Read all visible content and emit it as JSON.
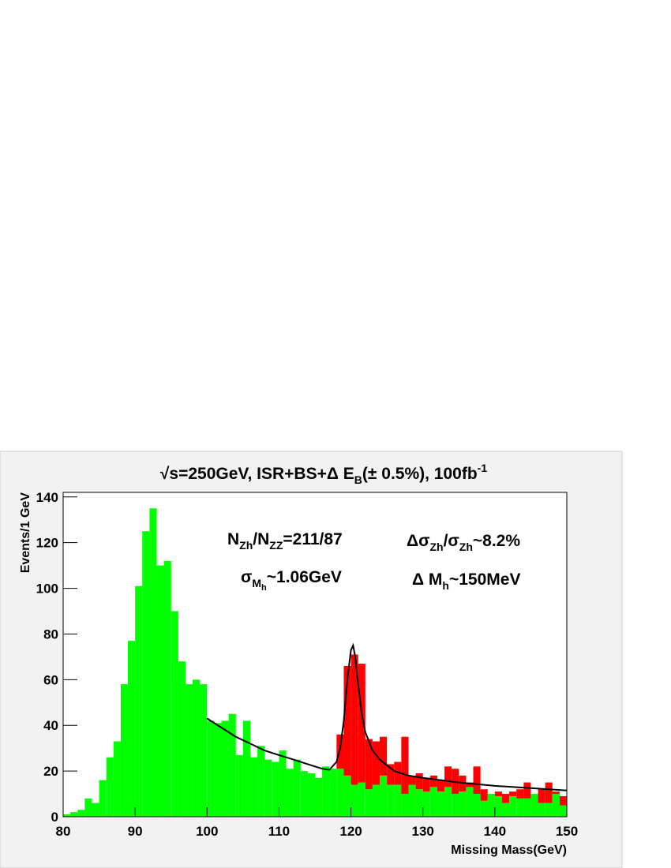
{
  "chart_data": {
    "type": "histogram",
    "title": [
      {
        "text": "√s=250GeV, ISR+BS+Δ E"
      },
      {
        "text": "B",
        "shift": "sub"
      },
      {
        "text": "(± 0.5%), 100fb"
      },
      {
        "text": "-1",
        "shift": "sup"
      }
    ],
    "x_label": "Missing Mass(GeV)",
    "y_label": "Events/1 GeV",
    "annotations": [
      [
        {
          "text": "N"
        },
        {
          "text": "Zh",
          "shift": "sub"
        },
        {
          "text": "/N"
        },
        {
          "text": "ZZ",
          "shift": "sub"
        },
        {
          "text": "=211/87"
        }
      ],
      [
        {
          "text": "Δσ"
        },
        {
          "text": "Zh",
          "shift": "sub"
        },
        {
          "text": "/σ"
        },
        {
          "text": "Zh",
          "shift": "sub"
        },
        {
          "text": "~8.2%"
        }
      ],
      [
        {
          "text": "σ"
        },
        {
          "text": "M",
          "shift": "sub"
        },
        {
          "text": "h",
          "shift": "subsub"
        },
        {
          "text": "~1.06GeV"
        }
      ],
      [
        {
          "text": "Δ M"
        },
        {
          "text": "h",
          "shift": "sub"
        },
        {
          "text": "~150MeV"
        }
      ]
    ],
    "bins": [
      80,
      81,
      82,
      83,
      84,
      85,
      86,
      87,
      88,
      89,
      90,
      91,
      92,
      93,
      94,
      95,
      96,
      97,
      98,
      99,
      100,
      101,
      102,
      103,
      104,
      105,
      106,
      107,
      108,
      109,
      110,
      111,
      112,
      113,
      114,
      115,
      116,
      117,
      118,
      119,
      120,
      121,
      122,
      123,
      124,
      125,
      126,
      127,
      128,
      129,
      130,
      131,
      132,
      133,
      134,
      135,
      136,
      137,
      138,
      139,
      140,
      141,
      142,
      143,
      144,
      145,
      146,
      147,
      148,
      149,
      150
    ],
    "series": [
      {
        "color": "#00ff00",
        "values": [
          1,
          2,
          3,
          8,
          6,
          16,
          26,
          33,
          58,
          77,
          101,
          125,
          135,
          110,
          112,
          90,
          68,
          58,
          60,
          58,
          42,
          41,
          42,
          45,
          27,
          42,
          26,
          31,
          25,
          24,
          29,
          21,
          25,
          20,
          19,
          17,
          22,
          21,
          21,
          18,
          14,
          15,
          12,
          14,
          18,
          14,
          14,
          10,
          14,
          12,
          11,
          13,
          11,
          13,
          10,
          11,
          13,
          10,
          7,
          10,
          9,
          6,
          9,
          8,
          8,
          10,
          6,
          6,
          10,
          5
        ]
      },
      {
        "color": "#ff0000",
        "values": [
          0,
          0,
          0,
          0,
          0,
          0,
          0,
          0,
          0,
          0,
          0,
          0,
          0,
          0,
          0,
          0,
          0,
          0,
          0,
          0,
          0,
          0,
          0,
          0,
          0,
          0,
          0,
          0,
          0,
          0,
          0,
          0,
          0,
          0,
          0,
          0,
          0,
          0,
          15,
          48,
          57,
          52,
          22,
          19,
          17,
          9,
          10,
          25,
          4,
          7,
          6,
          5,
          5,
          9,
          11,
          7,
          2,
          12,
          5,
          0,
          2,
          4,
          2,
          4,
          7,
          0,
          6,
          9,
          1,
          4
        ]
      }
    ],
    "fit": {
      "color": "#000000",
      "x": [
        100,
        102,
        104,
        106,
        108,
        110,
        112,
        114,
        116,
        117,
        118,
        118.5,
        119,
        119.5,
        120,
        120.3,
        120.6,
        121,
        121.5,
        122,
        123,
        124,
        126,
        128,
        130,
        135,
        140,
        145,
        150
      ],
      "values": [
        43,
        39,
        35,
        32,
        29,
        27,
        25,
        23,
        21,
        20.5,
        24,
        30,
        42,
        60,
        73,
        75,
        70,
        58,
        45,
        37,
        29,
        25,
        20,
        18,
        17,
        15,
        13.5,
        12.5,
        11.5
      ]
    },
    "xlim": [
      80,
      150
    ],
    "xticks": [
      80,
      90,
      100,
      110,
      120,
      130,
      140,
      150
    ],
    "ylim": [
      0,
      142
    ],
    "yticks": [
      0,
      20,
      40,
      60,
      80,
      100,
      120,
      140
    ]
  }
}
